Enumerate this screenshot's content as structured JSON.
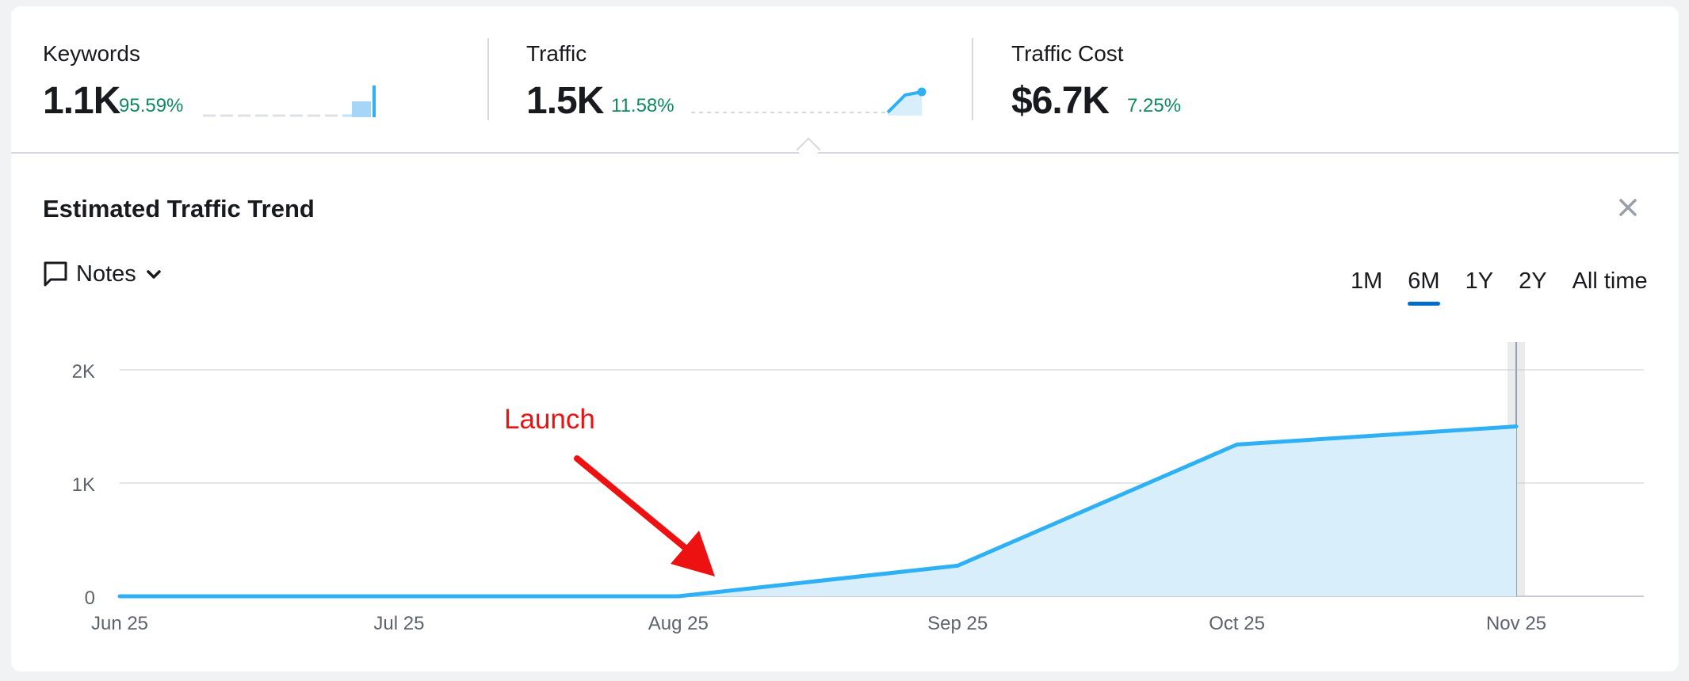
{
  "metrics": {
    "keywords": {
      "label": "Keywords",
      "value": "1.1K",
      "delta": "95.59%"
    },
    "traffic": {
      "label": "Traffic",
      "value": "1.5K",
      "delta": "11.58%"
    },
    "traffic_cost": {
      "label": "Traffic Cost",
      "value": "$6.7K",
      "delta": "7.25%"
    }
  },
  "panel": {
    "title": "Estimated Traffic Trend",
    "notes_label": "Notes",
    "ranges": [
      {
        "label": "1M",
        "active": false
      },
      {
        "label": "6M",
        "active": true
      },
      {
        "label": "1Y",
        "active": false
      },
      {
        "label": "2Y",
        "active": false
      },
      {
        "label": "All time",
        "active": false
      }
    ]
  },
  "annotation": {
    "text": "Launch"
  },
  "colors": {
    "line": "#2eb1f4",
    "area": "#d9eefb",
    "positive": "#0b8a5f",
    "accent": "#006dca",
    "annotation": "#ee1111"
  },
  "icons": {
    "notes": "speech-bubble-icon",
    "expand": "chevron-down-icon",
    "close": "close-icon"
  },
  "chart_data": {
    "type": "area",
    "x": [
      "Jun 25",
      "Jul 25",
      "Aug 25",
      "Sep 25",
      "Oct 25",
      "Nov 25"
    ],
    "values": [
      0,
      0,
      0,
      270,
      1340,
      1500
    ],
    "ylim": [
      0,
      2000
    ],
    "yticks": [
      {
        "value": 0,
        "label": "0"
      },
      {
        "value": 1000,
        "label": "1K"
      },
      {
        "value": 2000,
        "label": "2K"
      }
    ],
    "grid": true,
    "annotation": {
      "label": "Launch",
      "x": "Aug 25",
      "y": 0
    }
  }
}
